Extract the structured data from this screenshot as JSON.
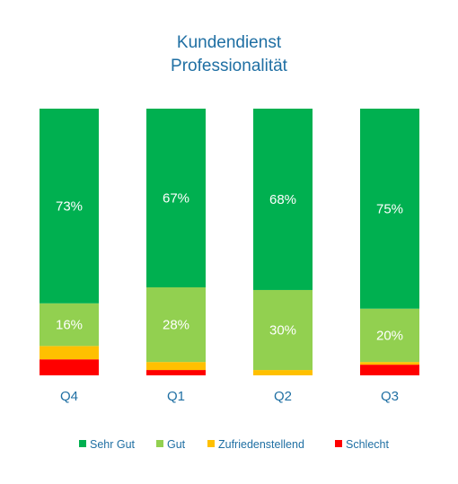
{
  "chart_data": {
    "type": "bar",
    "stacked": true,
    "title": [
      "Kundendienst",
      "Professionalität"
    ],
    "categories": [
      "Q4",
      "Q1",
      "Q2",
      "Q3"
    ],
    "series": [
      {
        "name": "Schlecht",
        "color": "#ff0000",
        "values": [
          6,
          2,
          0,
          4
        ]
      },
      {
        "name": "Zufriedenstellend",
        "color": "#ffc000",
        "values": [
          5,
          3,
          2,
          1
        ]
      },
      {
        "name": "Gut",
        "color": "#92d050",
        "values": [
          16,
          28,
          30,
          20
        ]
      },
      {
        "name": "Sehr Gut",
        "color": "#00b050",
        "values": [
          73,
          67,
          68,
          75
        ]
      }
    ],
    "data_labels": {
      "Gut": [
        "16%",
        "28%",
        "30%",
        "20%"
      ],
      "Sehr Gut": [
        "73%",
        "67%",
        "68%",
        "75%"
      ]
    },
    "legend": [
      "Sehr Gut",
      "Gut",
      "Zufriedenstellend",
      "Schlecht"
    ],
    "legend_position": "bottom",
    "ylim": [
      0,
      100
    ],
    "xlabel": "",
    "ylabel": "",
    "grid": false
  }
}
